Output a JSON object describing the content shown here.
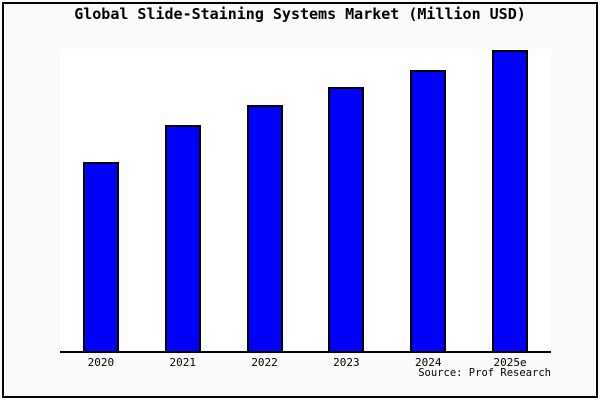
{
  "title": "Global Slide-Staining Systems Market (Million USD)",
  "source_text": "Source: Prof Research",
  "colors": {
    "background": "#fafafa",
    "plot_background": "#ffffff",
    "frame_border": "#000000",
    "axis_line": "#000000",
    "bar_fill": "#0000ff",
    "bar_border": "#000000",
    "text": "#000000"
  },
  "chart_data": {
    "type": "bar",
    "title": "Global Slide-Staining Systems Market (Million USD)",
    "categories": [
      "2020",
      "2021",
      "2022",
      "2023",
      "2024",
      "2025e"
    ],
    "values": [
      189,
      226,
      246,
      264,
      281,
      301
    ],
    "values_note": "Y axis has no tick labels in the image; values are estimated relative bar heights in screen pixels above the baseline.",
    "xlabel": "",
    "ylabel": "",
    "ylim": [
      0,
      302
    ],
    "grid": false,
    "legend": null,
    "y_axis_visible": false,
    "x_axis_line": true,
    "annotations": [
      "Source: Prof Research"
    ]
  }
}
